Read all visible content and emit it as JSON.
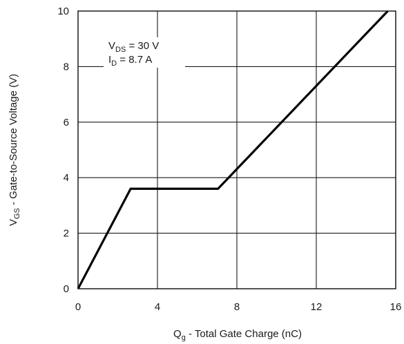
{
  "chart_data": {
    "type": "line",
    "title": "",
    "xlabel": {
      "main": "Q",
      "sub": "g",
      "rest": " - Total Gate Charge (nC)"
    },
    "ylabel": {
      "main": "V",
      "sub": "GS",
      "rest": " - Gate-to-Source Voltage (V)"
    },
    "xlim": [
      0,
      16
    ],
    "ylim": [
      0,
      10
    ],
    "xticks": [
      0,
      4,
      8,
      12,
      16
    ],
    "yticks": [
      0,
      2,
      4,
      6,
      8,
      10
    ],
    "grid": true,
    "series": [
      {
        "x": [
          0,
          2.65,
          7.05,
          15.6
        ],
        "y": [
          0,
          3.6,
          3.6,
          10
        ]
      }
    ],
    "annotations": [
      {
        "main": "V",
        "sub": "DS",
        "rest": " = 30 V"
      },
      {
        "main": "I",
        "sub": "D",
        "rest": " = 8.7 A"
      }
    ]
  }
}
